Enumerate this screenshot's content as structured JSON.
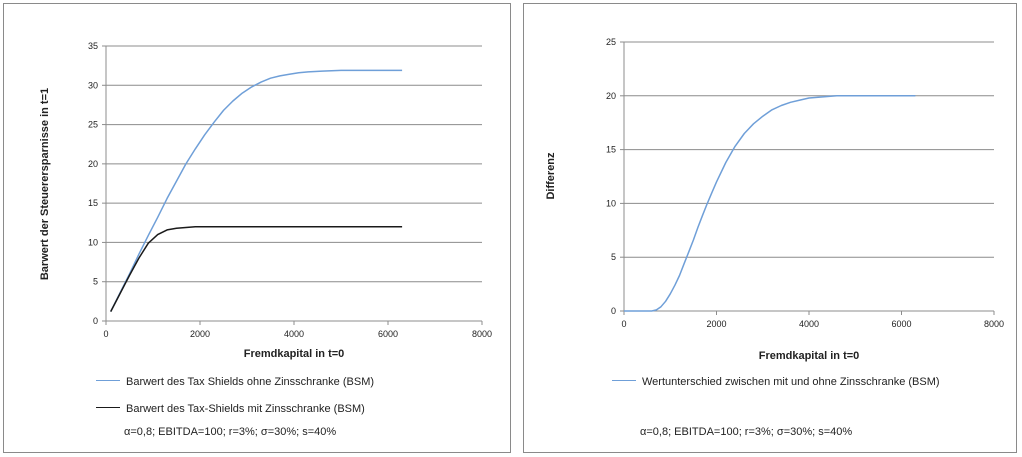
{
  "chart_data": [
    {
      "type": "line",
      "xlabel": "Fremdkapital  in t=0",
      "ylabel": "Barwert der Steuerersparnisse in t=1",
      "xlim": [
        0,
        8000
      ],
      "ylim": [
        0,
        35
      ],
      "xticks": [
        0,
        2000,
        4000,
        6000,
        8000
      ],
      "yticks": [
        0,
        5,
        10,
        15,
        20,
        25,
        30,
        35
      ],
      "grid": "horizontal",
      "legend_position": "bottom",
      "series": [
        {
          "name": "Barwert des Tax Shields ohne Zinsschranke (BSM)",
          "color": "#6f9fd8",
          "x": [
            100,
            300,
            500,
            700,
            900,
            1100,
            1300,
            1500,
            1700,
            1900,
            2100,
            2300,
            2500,
            2700,
            2900,
            3100,
            3300,
            3500,
            3700,
            3900,
            4100,
            4300,
            4600,
            5000,
            5500,
            6000,
            6300
          ],
          "y": [
            1.2,
            3.6,
            6.0,
            8.5,
            10.9,
            13.2,
            15.6,
            17.8,
            20.0,
            21.9,
            23.7,
            25.3,
            26.8,
            28.0,
            29.0,
            29.8,
            30.4,
            30.9,
            31.2,
            31.4,
            31.6,
            31.7,
            31.8,
            31.9,
            31.9,
            31.9,
            31.9
          ]
        },
        {
          "name": "Barwert des Tax-Shields mit Zinsschranke (BSM)",
          "color": "#1a1a1a",
          "x": [
            100,
            300,
            500,
            700,
            900,
            1100,
            1300,
            1500,
            1700,
            1900,
            2200,
            2600,
            3000,
            4000,
            5000,
            6000,
            6300
          ],
          "y": [
            1.2,
            3.5,
            5.8,
            8.0,
            9.9,
            11.0,
            11.6,
            11.8,
            11.9,
            12.0,
            12.0,
            12.0,
            12.0,
            12.0,
            12.0,
            12.0,
            12.0
          ]
        }
      ],
      "parameters": "α=0,8; EBITDA=100; r=3%; σ=30%; s=40%"
    },
    {
      "type": "line",
      "xlabel": "Fremdkapital  in t=0",
      "ylabel": "Differenz",
      "xlim": [
        0,
        8000
      ],
      "ylim": [
        0,
        25
      ],
      "xticks": [
        0,
        2000,
        4000,
        6000,
        8000
      ],
      "yticks": [
        0,
        5,
        10,
        15,
        20,
        25
      ],
      "grid": "horizontal",
      "legend_position": "bottom",
      "series": [
        {
          "name": "Wertunterschied zwischen mit und ohne Zinsschranke (BSM)",
          "color": "#6f9fd8",
          "x": [
            0,
            300,
            600,
            700,
            800,
            900,
            1000,
            1100,
            1200,
            1300,
            1400,
            1500,
            1600,
            1700,
            1800,
            1900,
            2000,
            2200,
            2400,
            2600,
            2800,
            3000,
            3200,
            3400,
            3600,
            3800,
            4000,
            4300,
            4600,
            5000,
            5500,
            6000,
            6300
          ],
          "y": [
            0,
            0,
            0,
            0.1,
            0.4,
            0.9,
            1.6,
            2.4,
            3.3,
            4.4,
            5.5,
            6.6,
            7.8,
            8.9,
            10.0,
            11.0,
            12.0,
            13.8,
            15.3,
            16.5,
            17.4,
            18.1,
            18.7,
            19.1,
            19.4,
            19.6,
            19.8,
            19.9,
            20.0,
            20.0,
            20.0,
            20.0,
            20.0
          ]
        }
      ],
      "parameters": "α=0,8; EBITDA=100; r=3%; σ=30%; s=40%"
    }
  ]
}
